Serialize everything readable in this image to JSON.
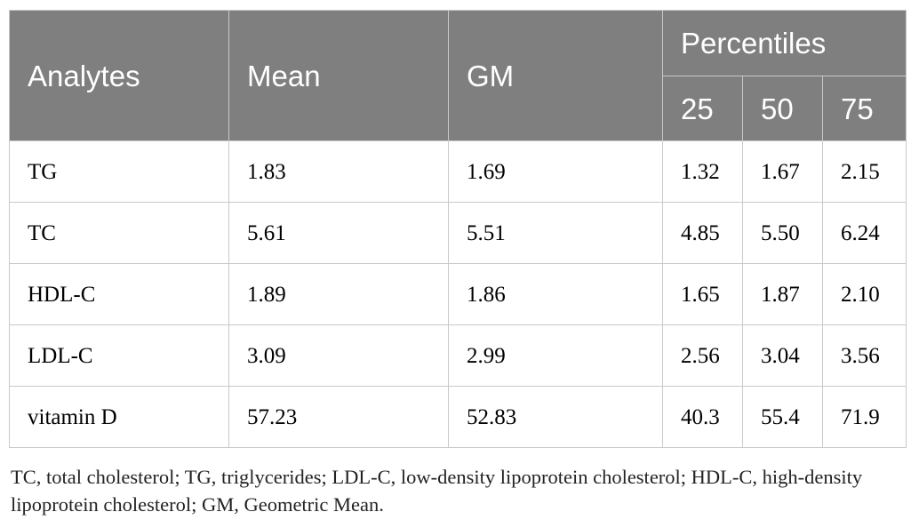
{
  "table": {
    "headers": {
      "analytes": "Analytes",
      "mean": "Mean",
      "gm": "GM",
      "percentiles": "Percentiles",
      "p25": "25",
      "p50": "50",
      "p75": "75"
    },
    "rows": [
      {
        "analyte": "TG",
        "mean": "1.83",
        "gm": "1.69",
        "p25": "1.32",
        "p50": "1.67",
        "p75": "2.15"
      },
      {
        "analyte": "TC",
        "mean": "5.61",
        "gm": "5.51",
        "p25": "4.85",
        "p50": "5.50",
        "p75": "6.24"
      },
      {
        "analyte": "HDL-C",
        "mean": "1.89",
        "gm": "1.86",
        "p25": "1.65",
        "p50": "1.87",
        "p75": "2.10"
      },
      {
        "analyte": "LDL-C",
        "mean": "3.09",
        "gm": "2.99",
        "p25": "2.56",
        "p50": "3.04",
        "p75": "3.56"
      },
      {
        "analyte": "vitamin D",
        "mean": "57.23",
        "gm": "52.83",
        "p25": "40.3",
        "p50": "55.4",
        "p75": "71.9"
      }
    ]
  },
  "footnote": "TC, total cholesterol; TG, triglycerides; LDL-C, low-density lipoprotein cholesterol; HDL-C, high-density lipoprotein cholesterol; GM, Geometric Mean.",
  "colors": {
    "header_bg": "#7f7f7f",
    "header_text": "#ffffff",
    "grid": "#c9c9c9"
  }
}
